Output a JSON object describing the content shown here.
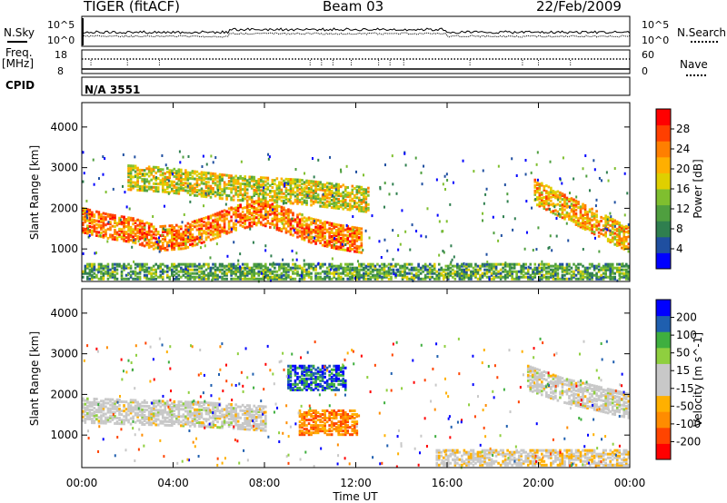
{
  "header": {
    "radar": "TIGER (fitACF)",
    "beam": "Beam 03",
    "date": "22/Feb/2009"
  },
  "nsky_panel": {
    "left_label": "N.Sky",
    "right_label": "N.Search",
    "left_ticks": [
      "10^5",
      "10^0"
    ],
    "right_ticks": [
      "10^5",
      "10^0"
    ]
  },
  "freq_panel": {
    "left_label_line1": "Freq.",
    "left_label_line2": "[MHz]",
    "left_ticks": [
      "18",
      "8"
    ],
    "right_label": "Nave",
    "right_ticks": [
      "60",
      "0"
    ]
  },
  "cpid_panel": {
    "label": "CPID",
    "value": "N/A 3551"
  },
  "x_axis": {
    "label": "Time UT",
    "tick_labels": [
      "00:00",
      "04:00",
      "08:00",
      "12:00",
      "16:00",
      "20:00",
      "00:00"
    ]
  },
  "colors": {
    "power_scale": [
      "#0000ff",
      "#1f4fa0",
      "#2f7f4f",
      "#4f9f3f",
      "#7fbf2f",
      "#dfcf00",
      "#ffaf00",
      "#ff7f00",
      "#ff3f00",
      "#ff0000"
    ],
    "velocity_scale": [
      "#ff0000",
      "#ff4400",
      "#ff8c00",
      "#ffb000",
      "#c8c8c8",
      "#c8c8c8",
      "#8fcf3f",
      "#3faf3f",
      "#1f5faf",
      "#0000ff"
    ]
  },
  "chart_data": [
    {
      "type": "heatmap",
      "title": "",
      "xlabel": "",
      "ylabel": "Slant Range [km]",
      "x_ticks": [
        "00:00",
        "04:00",
        "08:00",
        "12:00",
        "16:00",
        "20:00",
        "00:00"
      ],
      "y_ticks": [
        "1000",
        "2000",
        "3000",
        "4000"
      ],
      "ylim": [
        200,
        4600
      ],
      "colorbar": {
        "label": "Power [dB]",
        "range": [
          0,
          32
        ],
        "tick_labels": [
          "4",
          "8",
          "12",
          "16",
          "20",
          "24",
          "28"
        ]
      },
      "features": [
        {
          "name": "main band",
          "time_start_hr": 0.0,
          "time_end_hr": 12.2,
          "range_center_km": [
            1700,
            1550,
            1450,
            1250,
            1300,
            1500,
            1750,
            1900,
            1700,
            1450,
            1300,
            1200
          ],
          "power_db": 24
        },
        {
          "name": "upper band",
          "time_start_hr": 2.0,
          "time_end_hr": 12.5,
          "range_center_km": [
            2750,
            2700,
            2600,
            2500,
            2450,
            2400,
            2300,
            2200
          ],
          "power_db": 18
        },
        {
          "name": "evening band",
          "time_start_hr": 19.8,
          "time_end_hr": 24.0,
          "range_center_km": [
            2400,
            2100,
            1800,
            1500,
            1200
          ],
          "power_db": 22
        },
        {
          "name": "near-range scatter",
          "time_start_hr": 0.0,
          "time_end_hr": 24.0,
          "range_center_km": [
            450
          ],
          "power_db": 10
        }
      ]
    },
    {
      "type": "heatmap",
      "title": "",
      "xlabel": "Time UT",
      "ylabel": "Slant Range [km]",
      "x_ticks": [
        "00:00",
        "04:00",
        "08:00",
        "12:00",
        "16:00",
        "20:00",
        "00:00"
      ],
      "y_ticks": [
        "1000",
        "2000",
        "3000",
        "4000"
      ],
      "ylim": [
        200,
        4600
      ],
      "colorbar": {
        "label": "Velocity [m s^-1]",
        "range": [
          -250,
          250
        ],
        "tick_labels": [
          "-200",
          "-100",
          "-50",
          "-15",
          "15",
          "50",
          "100",
          "200"
        ]
      },
      "features": [
        {
          "name": "ground scatter band",
          "time_start_hr": 0.0,
          "time_end_hr": 8.0,
          "range_center_km": [
            1600,
            1550,
            1500,
            1400
          ],
          "velocity_ms": 0
        },
        {
          "name": "negative velocity patch",
          "time_start_hr": 9.5,
          "time_end_hr": 12.0,
          "range_center_km": [
            1300
          ],
          "velocity_ms": -120
        },
        {
          "name": "positive velocity patch",
          "time_start_hr": 9.0,
          "time_end_hr": 11.5,
          "range_center_km": [
            2400
          ],
          "velocity_ms": 200
        },
        {
          "name": "evening ground scatter",
          "time_start_hr": 19.5,
          "time_end_hr": 24.0,
          "range_center_km": [
            2400,
            2100,
            1900,
            1700
          ],
          "velocity_ms": 0
        },
        {
          "name": "low-range negative",
          "time_start_hr": 15.5,
          "time_end_hr": 24.0,
          "range_center_km": [
            450
          ],
          "velocity_ms": -40
        }
      ]
    }
  ]
}
